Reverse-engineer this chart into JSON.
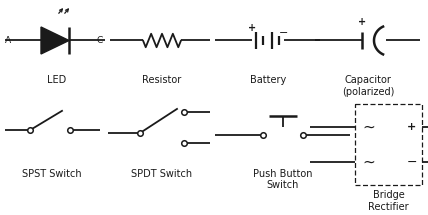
{
  "bg_color": "#ffffff",
  "line_color": "#1a1a1a",
  "font_size": 7,
  "components": {
    "LED": {
      "label": "LED"
    },
    "Resistor": {
      "label": "Resistor"
    },
    "Battery": {
      "label": "Battery"
    },
    "Capacitor": {
      "label": "Capacitor\n(polarized)"
    },
    "SPST": {
      "label": "SPST Switch"
    },
    "SPDT": {
      "label": "SPDT Switch"
    },
    "PushButton": {
      "label": "Push Button\nSwitch"
    },
    "Bridge": {
      "label": "Bridge\nRectifier"
    }
  }
}
